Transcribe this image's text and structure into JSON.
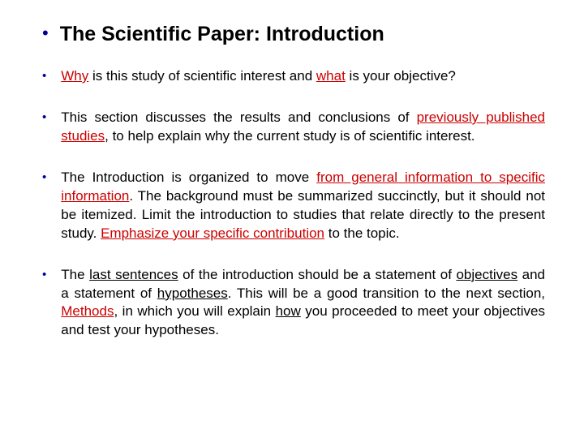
{
  "title": "The Scientific Paper:  Introduction",
  "colors": {
    "bullet": "#000099",
    "text": "#000000",
    "highlight": "#cc0000",
    "background": "#ffffff"
  },
  "fonts": {
    "title_size": 25,
    "body_size": 17,
    "family": "Arial"
  },
  "bullets": [
    {
      "segments": [
        {
          "t": "Why",
          "red": true,
          "under": true
        },
        {
          "t": " is this study of scientific interest and "
        },
        {
          "t": "what",
          "red": true,
          "under": true
        },
        {
          "t": " is your objective?"
        }
      ]
    },
    {
      "segments": [
        {
          "t": "This section discusses the results and conclusions of "
        },
        {
          "t": "previously published studies",
          "red": true,
          "under": true
        },
        {
          "t": ", to help explain why the current study is of scientific interest."
        }
      ]
    },
    {
      "segments": [
        {
          "t": "The Introduction is organized to move "
        },
        {
          "t": "from general information to specific information",
          "red": true,
          "under": true
        },
        {
          "t": ". The background must be summarized succinctly, but it should not be itemized. Limit the introduction to studies that relate directly to the present study. "
        },
        {
          "t": "Emphasize your specific contribution",
          "red": true,
          "under": true
        },
        {
          "t": " to the topic."
        }
      ]
    },
    {
      "segments": [
        {
          "t": "The "
        },
        {
          "t": "last sentences",
          "under": true
        },
        {
          "t": " of the introduction should be a statement of "
        },
        {
          "t": "objectives",
          "under": true
        },
        {
          "t": " and a statement of "
        },
        {
          "t": "hypotheses",
          "under": true
        },
        {
          "t": ". This will be a good transition to the next section, "
        },
        {
          "t": "Methods",
          "red": true,
          "under": true
        },
        {
          "t": ", in which you will explain "
        },
        {
          "t": "how",
          "under": true
        },
        {
          "t": " you proceeded to meet your objectives and test your hypotheses."
        }
      ]
    }
  ]
}
